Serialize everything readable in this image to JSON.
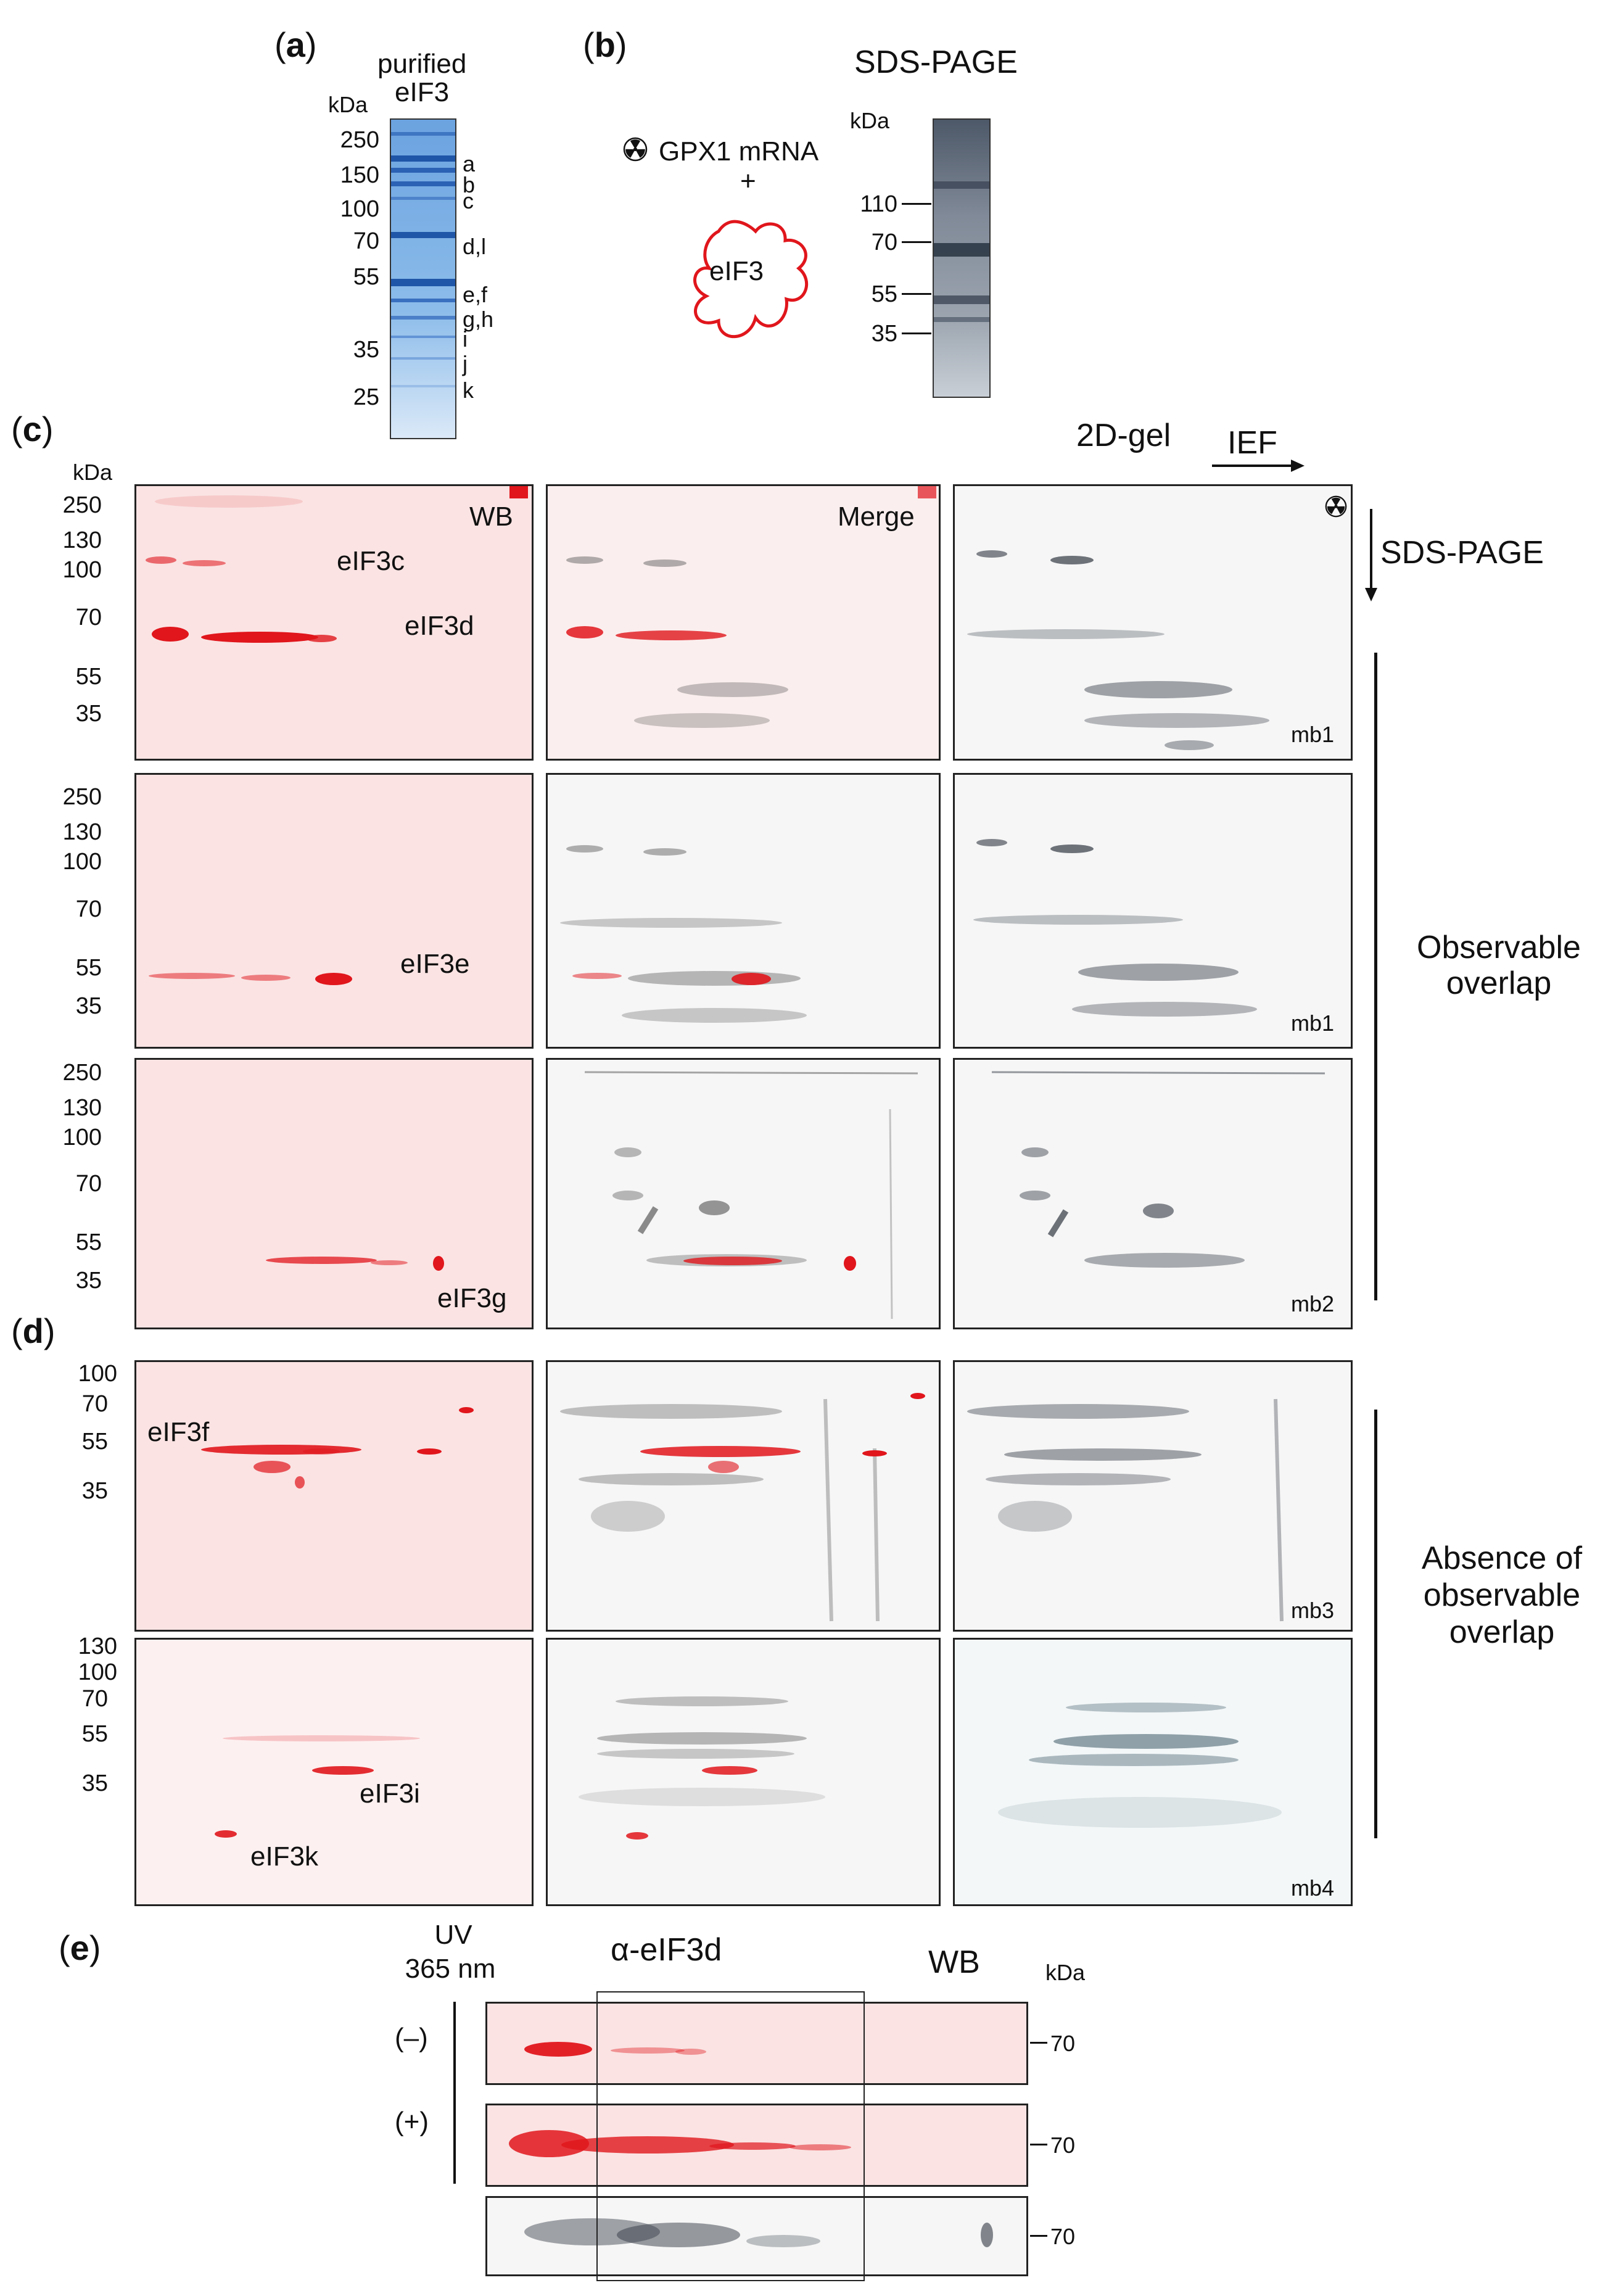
{
  "panel_a": {
    "letter": "a",
    "title_line1": "purified",
    "title_line2": "eIF3",
    "kda": "kDa",
    "markers": [
      "250",
      "150",
      "100",
      "70",
      "55",
      "35",
      "25"
    ],
    "subunits": [
      "a",
      "b",
      "c",
      "d,l",
      "e,f",
      "g,h",
      "i",
      "j",
      "k"
    ]
  },
  "panel_b": {
    "letter": "b",
    "mrna": "GPX1 mRNA",
    "plus": "+",
    "complex": "eIF3",
    "title": "SDS-PAGE",
    "kda": "kDa",
    "markers": [
      "110",
      "70",
      "55",
      "35"
    ]
  },
  "panel_c": {
    "letter": "c",
    "kda": "kDa",
    "gel2d": "2D-gel",
    "ief": "IEF",
    "sds": "SDS-PAGE",
    "wb": "WB",
    "merge": "Merge",
    "row1": {
      "markers": [
        "250",
        "130",
        "100",
        "70",
        "55",
        "35"
      ],
      "labels": [
        "eIF3c",
        "eIF3d"
      ],
      "mb": "mb1"
    },
    "row2": {
      "markers": [
        "250",
        "130",
        "100",
        "70",
        "55",
        "35"
      ],
      "labels": [
        "eIF3e"
      ],
      "mb": "mb1"
    },
    "row3": {
      "markers": [
        "250",
        "130",
        "100",
        "70",
        "55",
        "35"
      ],
      "labels": [
        "eIF3g"
      ],
      "mb": "mb2"
    },
    "side_label_line1": "Observable",
    "side_label_line2": "overlap"
  },
  "panel_d": {
    "letter": "d",
    "row1": {
      "markers": [
        "100",
        "70",
        "55",
        "35"
      ],
      "labels": [
        "eIF3f"
      ],
      "mb": "mb3"
    },
    "row2": {
      "markers": [
        "130",
        "100",
        "70",
        "55",
        "35"
      ],
      "labels": [
        "eIF3i",
        "eIF3k"
      ],
      "mb": "mb4"
    },
    "side_label_line1": "Absence of",
    "side_label_line2": "observable",
    "side_label_line3": "overlap"
  },
  "panel_e": {
    "letter": "e",
    "uv_line1": "UV",
    "uv_line2": "365 nm",
    "antibody": "α-eIF3d",
    "wb": "WB",
    "kda": "kDa",
    "minus": "(–)",
    "plus": "(+)",
    "markers": [
      "70",
      "70",
      "70"
    ]
  },
  "colors": {
    "wb_red": "#e0161c",
    "wb_bg": "#fbe3e3",
    "coomassie": "#2f6fc4",
    "autorad": "#333a44"
  }
}
